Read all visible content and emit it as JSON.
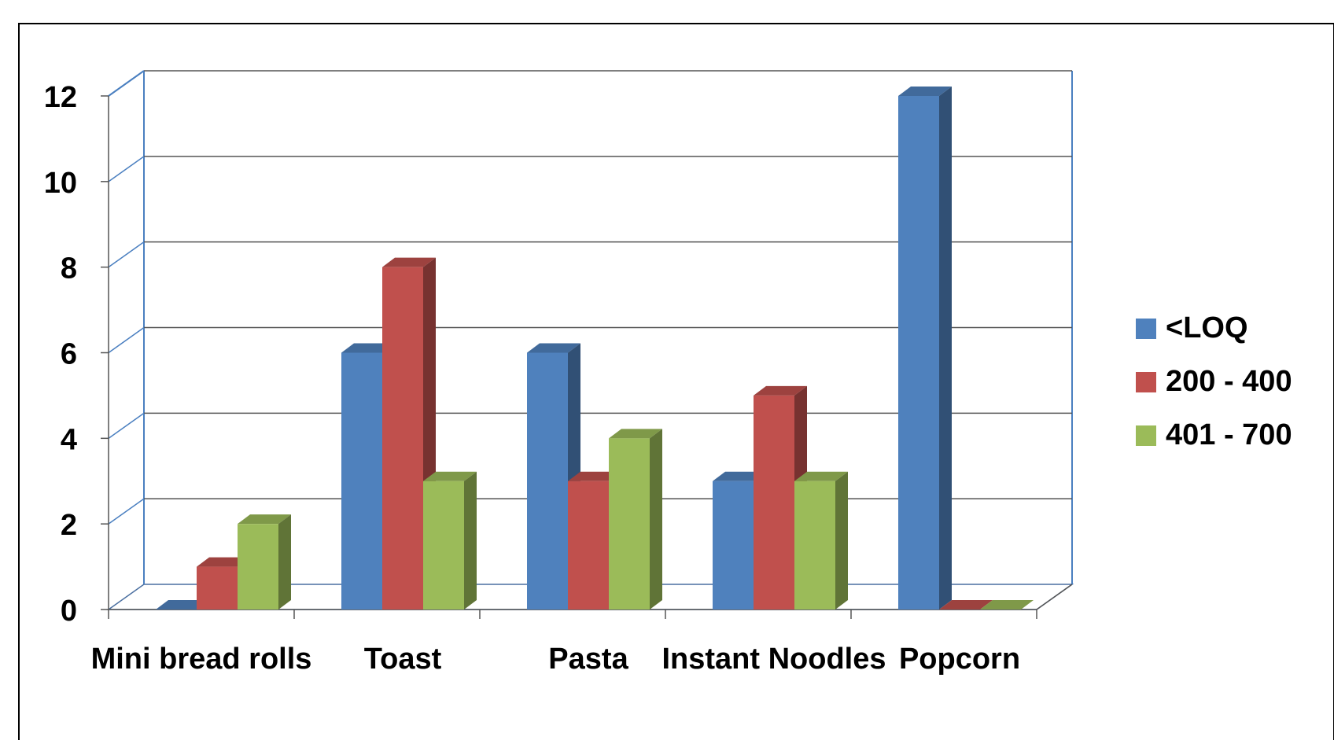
{
  "chart_data": {
    "type": "bar",
    "categories": [
      "Mini bread rolls",
      "Toast",
      "Pasta",
      "Instant Noodles",
      "Popcorn"
    ],
    "series": [
      {
        "name": "<LOQ",
        "values": [
          0,
          6,
          6,
          3,
          12
        ],
        "color": "#4F81BD"
      },
      {
        "name": "200 - 400",
        "values": [
          1,
          8,
          3,
          5,
          0
        ],
        "color": "#C0504D"
      },
      {
        "name": "401 - 700",
        "values": [
          2,
          3,
          4,
          3,
          0
        ],
        "color": "#9BBB59"
      }
    ],
    "title": "",
    "xlabel": "",
    "ylabel": "",
    "ylim": [
      0,
      12
    ],
    "yticks": [
      "0",
      "2",
      "4",
      "6",
      "8",
      "10",
      "12"
    ],
    "grid": true,
    "legend_position": "right",
    "style": "3d-clustered-column"
  }
}
